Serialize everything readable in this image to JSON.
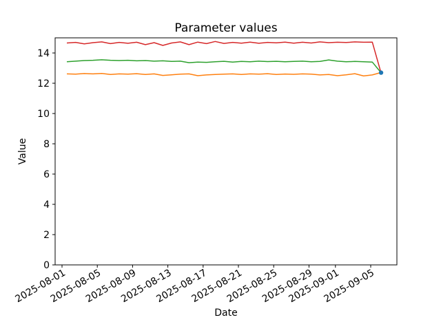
{
  "figure": {
    "background": "#ffffff",
    "frame_color": "#000000",
    "text_color": "#000000"
  },
  "chart_data": {
    "type": "line",
    "title": "Parameter values",
    "xlabel": "Date",
    "ylabel": "Value",
    "ylim": [
      0,
      15
    ],
    "yticks": [
      0,
      2,
      4,
      6,
      8,
      10,
      12,
      14
    ],
    "x_tick_labels": [
      "2025-08-01",
      "2025-08-05",
      "2025-08-09",
      "2025-08-13",
      "2025-08-17",
      "2025-08-21",
      "2025-08-25",
      "2025-08-29",
      "2025-09-01",
      "2025-09-05"
    ],
    "x_tick_rotation_deg": 30,
    "grid": false,
    "legend": "none",
    "x": [
      "2025-08-01",
      "2025-08-02",
      "2025-08-03",
      "2025-08-04",
      "2025-08-05",
      "2025-08-06",
      "2025-08-07",
      "2025-08-08",
      "2025-08-09",
      "2025-08-10",
      "2025-08-11",
      "2025-08-12",
      "2025-08-13",
      "2025-08-14",
      "2025-08-15",
      "2025-08-16",
      "2025-08-17",
      "2025-08-18",
      "2025-08-19",
      "2025-08-20",
      "2025-08-21",
      "2025-08-22",
      "2025-08-23",
      "2025-08-24",
      "2025-08-25",
      "2025-08-26",
      "2025-08-27",
      "2025-08-28",
      "2025-08-29",
      "2025-08-30",
      "2025-08-31",
      "2025-09-01",
      "2025-09-02",
      "2025-09-03",
      "2025-09-04",
      "2025-09-05",
      "2025-09-06"
    ],
    "series": [
      {
        "name": "red",
        "color": "#d62728",
        "values": [
          14.66,
          14.7,
          14.6,
          14.68,
          14.73,
          14.62,
          14.7,
          14.64,
          14.71,
          14.55,
          14.68,
          14.5,
          14.66,
          14.73,
          14.55,
          14.72,
          14.62,
          14.76,
          14.63,
          14.7,
          14.65,
          14.72,
          14.64,
          14.7,
          14.67,
          14.72,
          14.65,
          14.71,
          14.66,
          14.73,
          14.68,
          14.71,
          14.69,
          14.73,
          14.71,
          14.72,
          12.68
        ]
      },
      {
        "name": "green",
        "color": "#2ca02c",
        "values": [
          13.42,
          13.46,
          13.5,
          13.52,
          13.55,
          13.52,
          13.5,
          13.52,
          13.48,
          13.5,
          13.46,
          13.48,
          13.44,
          13.46,
          13.36,
          13.4,
          13.38,
          13.42,
          13.45,
          13.4,
          13.44,
          13.42,
          13.46,
          13.43,
          13.45,
          13.42,
          13.44,
          13.46,
          13.42,
          13.44,
          13.54,
          13.46,
          13.42,
          13.44,
          13.42,
          13.4,
          12.7
        ]
      },
      {
        "name": "orange",
        "color": "#ff7f0e",
        "values": [
          12.62,
          12.6,
          12.64,
          12.62,
          12.65,
          12.58,
          12.62,
          12.6,
          12.63,
          12.58,
          12.62,
          12.52,
          12.56,
          12.6,
          12.62,
          12.5,
          12.55,
          12.58,
          12.6,
          12.62,
          12.58,
          12.62,
          12.6,
          12.63,
          12.58,
          12.61,
          12.59,
          12.62,
          12.6,
          12.55,
          12.58,
          12.5,
          12.56,
          12.63,
          12.48,
          12.55,
          12.71
        ]
      }
    ],
    "end_marker": {
      "shape": "dot",
      "color": "#1f77b4",
      "date": "2025-09-06",
      "value": 12.7
    }
  }
}
